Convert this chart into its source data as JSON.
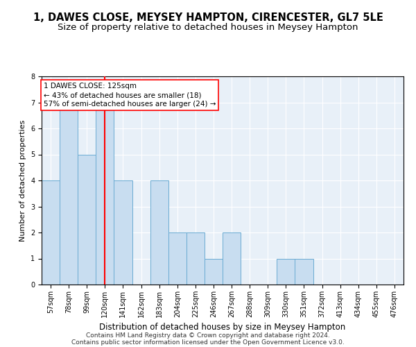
{
  "title1": "1, DAWES CLOSE, MEYSEY HAMPTON, CIRENCESTER, GL7 5LE",
  "title2": "Size of property relative to detached houses in Meysey Hampton",
  "xlabel": "Distribution of detached houses by size in Meysey Hampton",
  "ylabel": "Number of detached properties",
  "categories": [
    "57sqm",
    "78sqm",
    "99sqm",
    "120sqm",
    "141sqm",
    "162sqm",
    "183sqm",
    "204sqm",
    "225sqm",
    "246sqm",
    "267sqm",
    "288sqm",
    "309sqm",
    "330sqm",
    "351sqm",
    "372sqm",
    "413sqm",
    "434sqm",
    "455sqm",
    "476sqm"
  ],
  "values": [
    4,
    7,
    5,
    7,
    4,
    0,
    4,
    2,
    2,
    1,
    2,
    0,
    0,
    1,
    1,
    0,
    0,
    0,
    0,
    0
  ],
  "bar_color": "#c8ddf0",
  "bar_edgecolor": "#6aabd2",
  "redline_index": 3,
  "annotation_line1": "1 DAWES CLOSE: 125sqm",
  "annotation_line2": "← 43% of detached houses are smaller (18)",
  "annotation_line3": "57% of semi-detached houses are larger (24) →",
  "annotation_box_color": "white",
  "annotation_box_edgecolor": "red",
  "redline_color": "red",
  "ylim": [
    0,
    8
  ],
  "yticks": [
    0,
    1,
    2,
    3,
    4,
    5,
    6,
    7,
    8
  ],
  "footnote1": "Contains HM Land Registry data © Crown copyright and database right 2024.",
  "footnote2": "Contains public sector information licensed under the Open Government Licence v3.0.",
  "bg_color": "#e8f0f8",
  "grid_color": "#ffffff",
  "title1_fontsize": 10.5,
  "title2_fontsize": 9.5,
  "xlabel_fontsize": 8.5,
  "ylabel_fontsize": 8,
  "tick_fontsize": 7,
  "annot_fontsize": 7.5,
  "footnote_fontsize": 6.5
}
